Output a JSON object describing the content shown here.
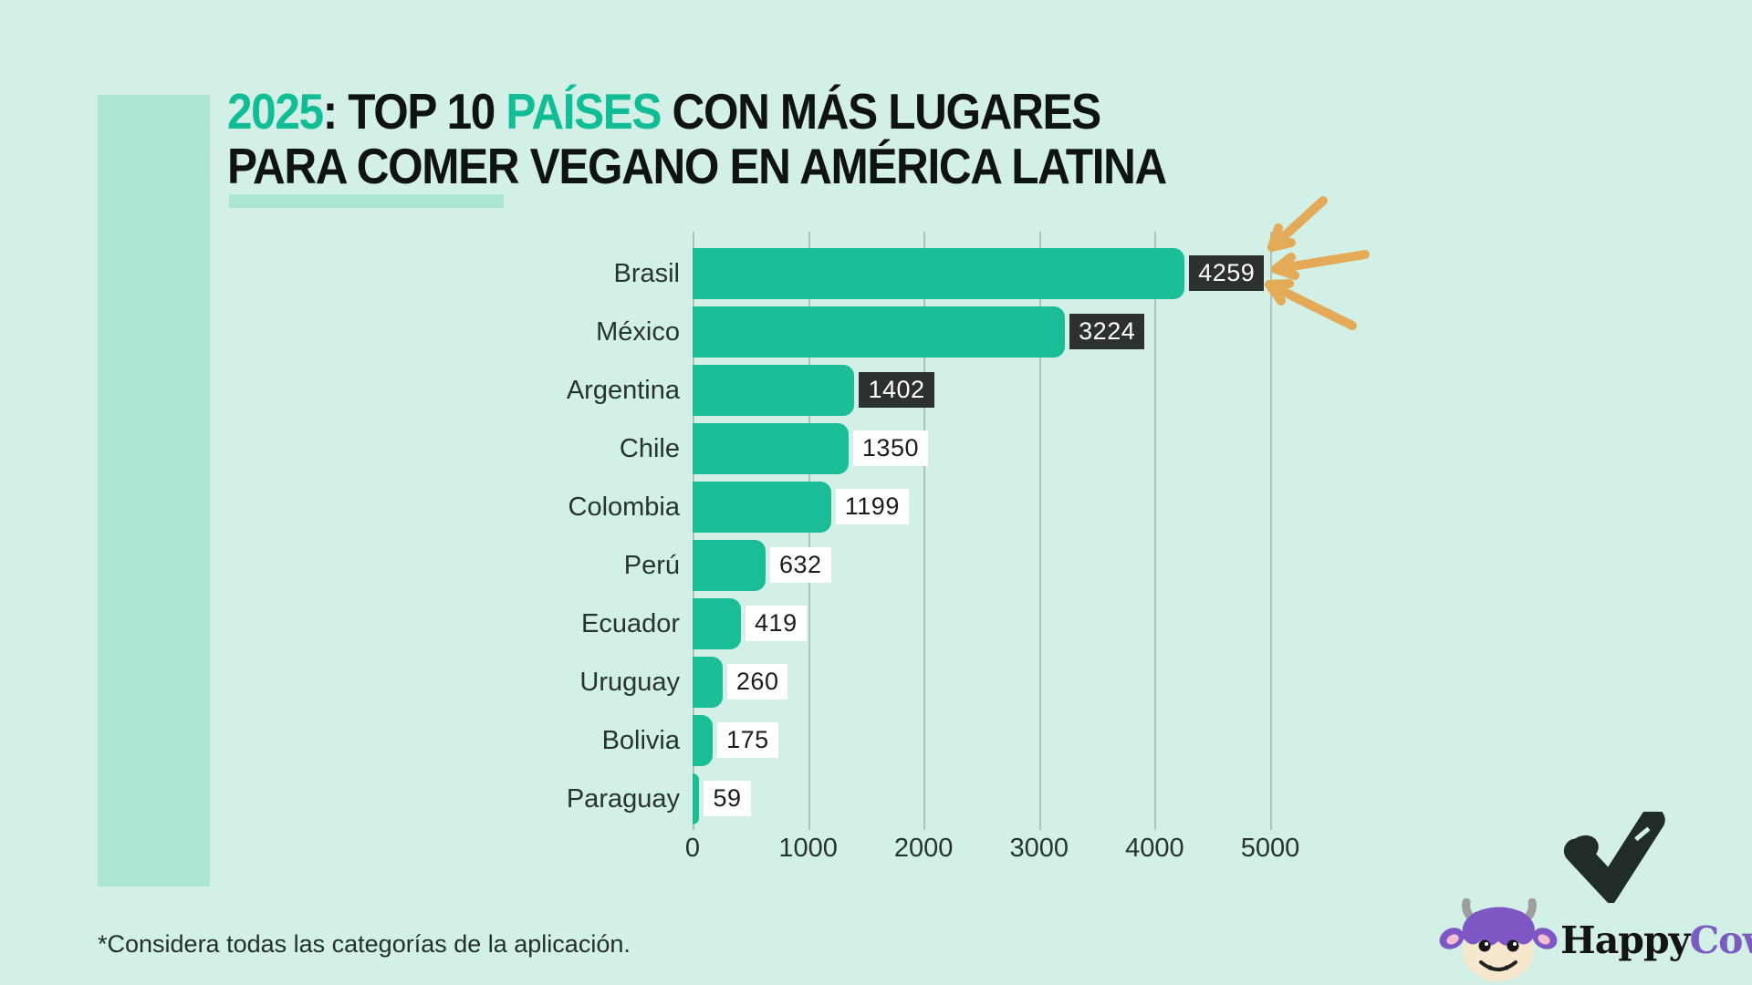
{
  "page": {
    "background_color": "#d3f0e6",
    "accent_panel_color": "#aae6d1"
  },
  "title": {
    "accent_color": "#10bd97",
    "text_color": "#0f1413",
    "line1_segments": [
      {
        "text": "2025",
        "accent": true
      },
      {
        "text": ": TOP 10 ",
        "accent": false
      },
      {
        "text": "PAÍSES",
        "accent": true
      },
      {
        "text": " CON MÁS LUGARES",
        "accent": false
      }
    ],
    "line2": "PARA COMER VEGANO EN AMÉRICA LATINA"
  },
  "chart_data": {
    "type": "bar",
    "orientation": "horizontal",
    "title": "2025: TOP 10 PAÍSES CON MÁS LUGARES PARA COMER VEGANO EN AMÉRICA LATINA",
    "categories": [
      "Brasil",
      "México",
      "Argentina",
      "Chile",
      "Colombia",
      "Perú",
      "Ecuador",
      "Uruguay",
      "Bolivia",
      "Paraguay"
    ],
    "values": [
      4259,
      3224,
      1402,
      1350,
      1199,
      632,
      419,
      260,
      175,
      59
    ],
    "value_label_styles": [
      "dark",
      "dark",
      "dark",
      "light",
      "light",
      "light",
      "light",
      "light",
      "light",
      "light"
    ],
    "x_ticks": [
      0,
      1000,
      2000,
      3000,
      4000,
      5000
    ],
    "xlim": [
      0,
      5000
    ],
    "xlabel": "",
    "ylabel": "",
    "grid": true,
    "legend": false,
    "bar_color": "#1abd95",
    "gridline_color": "#abc4ba",
    "dark_badge_color": "#2c302f",
    "light_badge_color": "#ffffff"
  },
  "footnote": {
    "text": "*Considera todas las categorías de la aplicación."
  },
  "logo": {
    "word1": "Happy",
    "word2": "Cow",
    "word1_color": "#141414",
    "word2_color": "#7a5bc0"
  },
  "decorations": {
    "arrows_color": "#e3aa58",
    "heart_color": "#212b29"
  }
}
